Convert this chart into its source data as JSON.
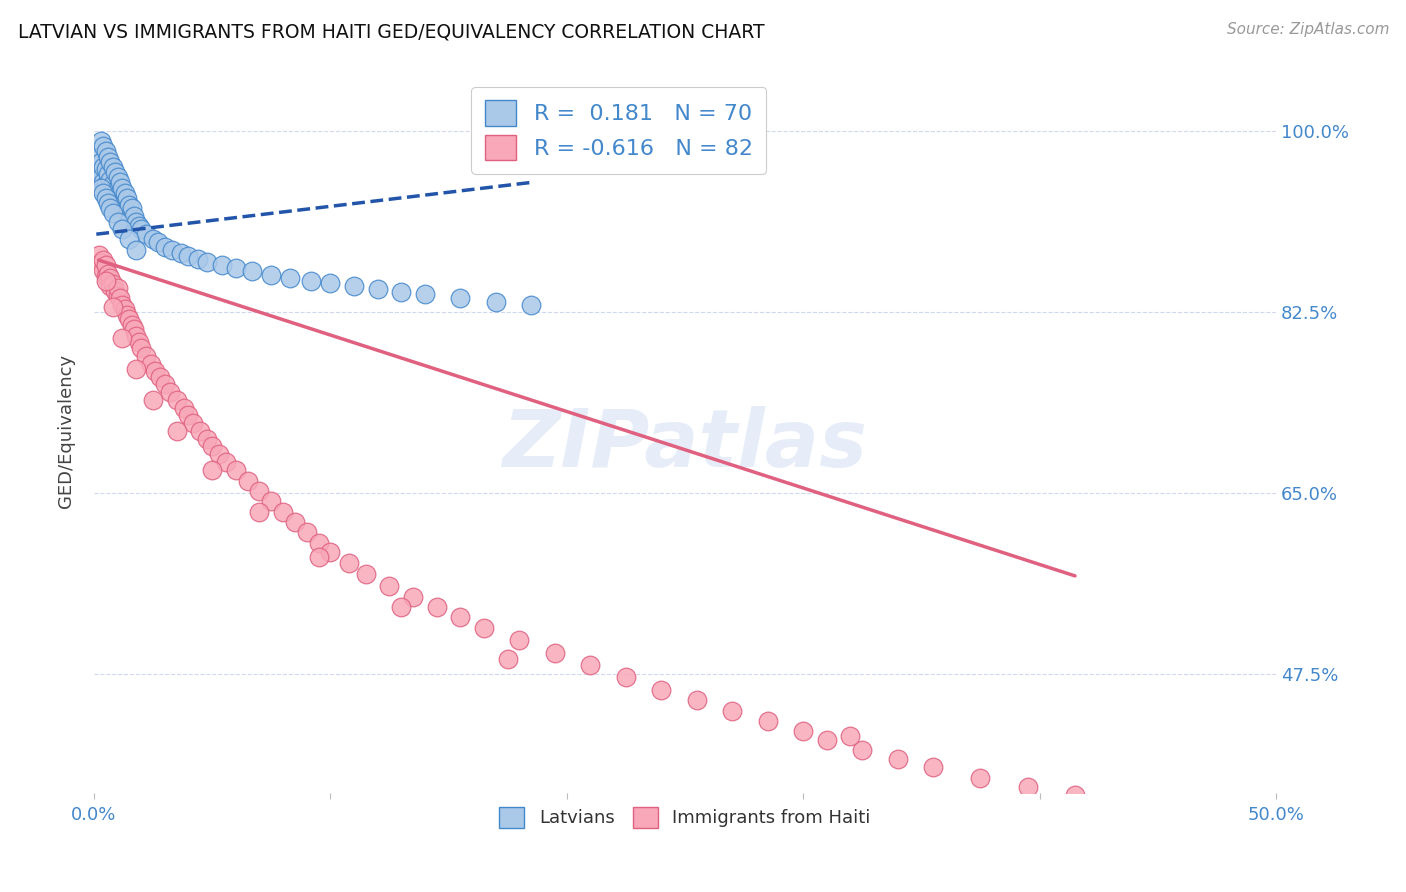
{
  "title": "LATVIAN VS IMMIGRANTS FROM HAITI GED/EQUIVALENCY CORRELATION CHART",
  "source": "Source: ZipAtlas.com",
  "ylabel": "GED/Equivalency",
  "ytick_labels": [
    "100.0%",
    "82.5%",
    "65.0%",
    "47.5%"
  ],
  "ytick_values": [
    1.0,
    0.825,
    0.65,
    0.475
  ],
  "xmin": 0.0,
  "xmax": 0.5,
  "ymin": 0.36,
  "ymax": 1.06,
  "latvian_color": "#aac8e8",
  "latvian_edge_color": "#4488cc",
  "haiti_color": "#f8a8b8",
  "haiti_edge_color": "#e06080",
  "trend_latvian_color": "#2255aa",
  "trend_haiti_color": "#e06080",
  "legend_label_latvian": "Latvians",
  "legend_label_haiti": "Immigrants from Haiti",
  "watermark": "ZIPatlas",
  "grid_color": "#d0d8ee",
  "background_color": "#ffffff",
  "tick_color": "#4488cc",
  "latvian_scatter_x": [
    0.001,
    0.002,
    0.002,
    0.003,
    0.003,
    0.003,
    0.004,
    0.004,
    0.004,
    0.005,
    0.005,
    0.005,
    0.006,
    0.006,
    0.007,
    0.007,
    0.007,
    0.008,
    0.008,
    0.009,
    0.009,
    0.01,
    0.01,
    0.011,
    0.011,
    0.012,
    0.012,
    0.013,
    0.013,
    0.014,
    0.015,
    0.015,
    0.016,
    0.017,
    0.018,
    0.019,
    0.02,
    0.022,
    0.025,
    0.027,
    0.03,
    0.033,
    0.037,
    0.04,
    0.044,
    0.048,
    0.054,
    0.06,
    0.067,
    0.075,
    0.083,
    0.092,
    0.1,
    0.11,
    0.12,
    0.13,
    0.14,
    0.155,
    0.17,
    0.185,
    0.003,
    0.004,
    0.005,
    0.006,
    0.007,
    0.008,
    0.01,
    0.012,
    0.015,
    0.018
  ],
  "latvian_scatter_y": [
    0.955,
    0.975,
    0.96,
    0.99,
    0.97,
    0.955,
    0.985,
    0.965,
    0.95,
    0.98,
    0.963,
    0.948,
    0.975,
    0.958,
    0.97,
    0.952,
    0.938,
    0.965,
    0.948,
    0.96,
    0.942,
    0.955,
    0.938,
    0.95,
    0.933,
    0.945,
    0.928,
    0.94,
    0.923,
    0.935,
    0.928,
    0.915,
    0.925,
    0.918,
    0.912,
    0.908,
    0.905,
    0.9,
    0.895,
    0.892,
    0.888,
    0.885,
    0.882,
    0.879,
    0.876,
    0.873,
    0.87,
    0.867,
    0.864,
    0.861,
    0.858,
    0.855,
    0.853,
    0.85,
    0.847,
    0.844,
    0.842,
    0.838,
    0.835,
    0.832,
    0.945,
    0.94,
    0.935,
    0.93,
    0.925,
    0.92,
    0.912,
    0.905,
    0.895,
    0.885
  ],
  "haiti_scatter_x": [
    0.002,
    0.003,
    0.004,
    0.004,
    0.005,
    0.005,
    0.006,
    0.007,
    0.007,
    0.008,
    0.009,
    0.01,
    0.01,
    0.011,
    0.012,
    0.013,
    0.014,
    0.015,
    0.016,
    0.017,
    0.018,
    0.019,
    0.02,
    0.022,
    0.024,
    0.026,
    0.028,
    0.03,
    0.032,
    0.035,
    0.038,
    0.04,
    0.042,
    0.045,
    0.048,
    0.05,
    0.053,
    0.056,
    0.06,
    0.065,
    0.07,
    0.075,
    0.08,
    0.085,
    0.09,
    0.095,
    0.1,
    0.108,
    0.115,
    0.125,
    0.135,
    0.145,
    0.155,
    0.165,
    0.18,
    0.195,
    0.21,
    0.225,
    0.24,
    0.255,
    0.27,
    0.285,
    0.3,
    0.31,
    0.325,
    0.34,
    0.355,
    0.375,
    0.395,
    0.415,
    0.005,
    0.008,
    0.012,
    0.018,
    0.025,
    0.035,
    0.05,
    0.07,
    0.095,
    0.13,
    0.175,
    0.32
  ],
  "haiti_scatter_y": [
    0.88,
    0.872,
    0.865,
    0.875,
    0.86,
    0.87,
    0.862,
    0.858,
    0.85,
    0.852,
    0.845,
    0.84,
    0.848,
    0.838,
    0.832,
    0.828,
    0.822,
    0.818,
    0.812,
    0.808,
    0.802,
    0.796,
    0.79,
    0.782,
    0.775,
    0.768,
    0.762,
    0.755,
    0.748,
    0.74,
    0.732,
    0.725,
    0.718,
    0.71,
    0.702,
    0.695,
    0.688,
    0.68,
    0.672,
    0.662,
    0.652,
    0.642,
    0.632,
    0.622,
    0.612,
    0.602,
    0.593,
    0.582,
    0.572,
    0.56,
    0.55,
    0.54,
    0.53,
    0.52,
    0.508,
    0.496,
    0.484,
    0.472,
    0.46,
    0.45,
    0.44,
    0.43,
    0.42,
    0.412,
    0.402,
    0.393,
    0.385,
    0.375,
    0.366,
    0.358,
    0.855,
    0.83,
    0.8,
    0.77,
    0.74,
    0.71,
    0.672,
    0.632,
    0.588,
    0.54,
    0.49,
    0.415
  ],
  "lat_trend_x0": 0.001,
  "lat_trend_x1": 0.185,
  "lat_trend_y0": 0.9,
  "lat_trend_y1": 0.95,
  "hai_trend_x0": 0.002,
  "hai_trend_x1": 0.415,
  "hai_trend_y0": 0.875,
  "hai_trend_y1": 0.57
}
